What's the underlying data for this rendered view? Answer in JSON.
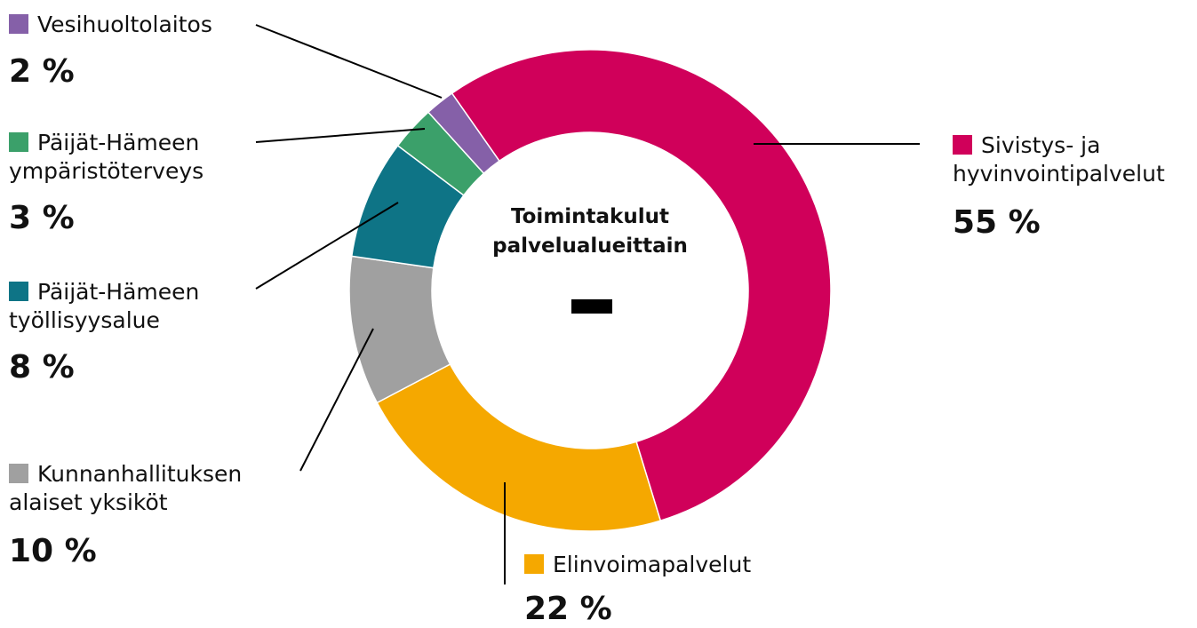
{
  "chart_data": {
    "type": "donut",
    "title": "Toimintakulut palvelualueittain",
    "categories": [
      "Sivistys- ja hyvinvointipalvelut",
      "Elinvoimapalvelut",
      "Kunnanhallituksen alaiset yksiköt",
      "Päijät-Hämeen työllisyysalue",
      "Päijät-Hämeen ympäristöterveys",
      "Vesihuoltolaitos"
    ],
    "values": [
      55,
      22,
      10,
      8,
      3,
      2
    ],
    "value_labels": [
      "55 %",
      "22 %",
      "10 %",
      "8 %",
      "3 %",
      "2 %"
    ],
    "colors": [
      "#d0005a",
      "#f5a800",
      "#a0a0a0",
      "#0e7486",
      "#3ba06a",
      "#8560a8"
    ]
  }
}
